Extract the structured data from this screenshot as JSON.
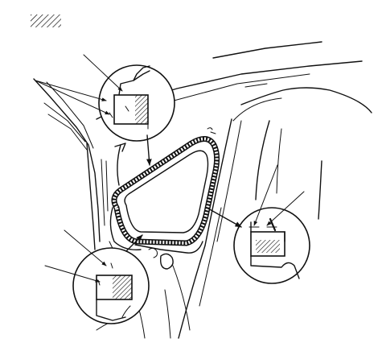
{
  "figure": {
    "description_label": "",
    "hatch_symbol_icon": "hatch-legend-icon"
  },
  "callouts": [
    {
      "id": "upper-left-detail",
      "icon": "magnified-seal-detail-icon"
    },
    {
      "id": "lower-left-detail",
      "icon": "magnified-seal-detail-icon"
    },
    {
      "id": "right-detail",
      "icon": "magnified-seal-detail-icon"
    }
  ]
}
